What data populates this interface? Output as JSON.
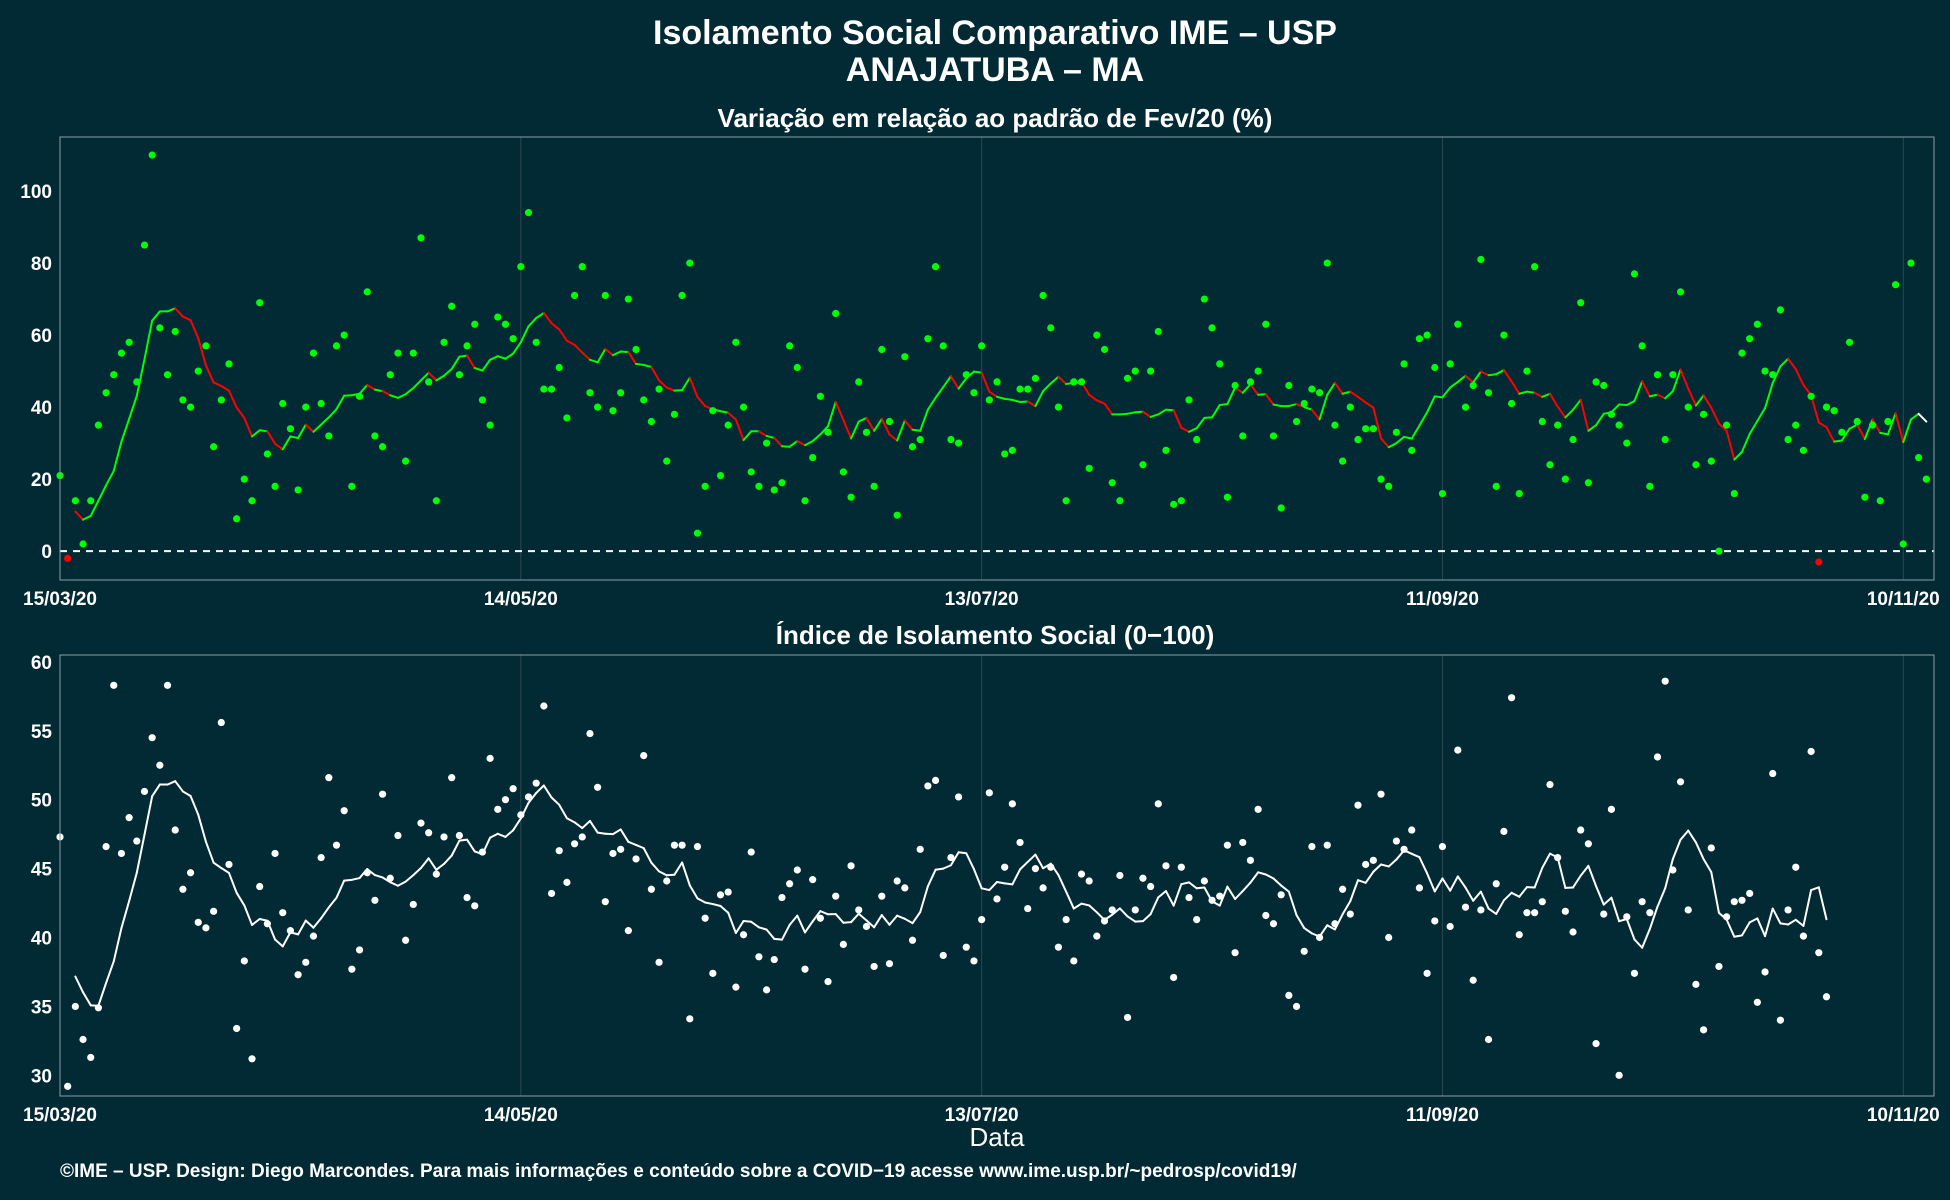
{
  "header": {
    "title_line1": "Isolamento Social Comparativo IME – USP",
    "title_line2": "ANAJATUBA – MA"
  },
  "footer": {
    "credit": "©IME – USP. Design: Diego Marcondes. Para mais informações e conteúdo sobre a COVID−19 acesse www.ime.usp.br/~pedrosp/covid19/"
  },
  "colors": {
    "background": "#022a35",
    "grid": "#2b4752",
    "green": "#00ff00",
    "red": "#ff0000",
    "white": "#ffffff"
  },
  "chart_data": [
    {
      "type": "scatter",
      "title": "Variação em relação ao padrão de Fev/20 (%)",
      "xlabel": "",
      "ylabel": "",
      "x_start": "15/03/20",
      "x_end": "14/11/20",
      "x_ticks": [
        "15/03/20",
        "14/05/20",
        "13/07/20",
        "11/09/20",
        "10/11/20"
      ],
      "x_tick_days": [
        0,
        60,
        120,
        180,
        240
      ],
      "ylim": [
        -8,
        115
      ],
      "y_ticks": [
        0,
        20,
        40,
        60,
        80,
        100
      ],
      "reference_line": 0,
      "grid": true,
      "point_color_rule": "green if >= 0, red if < 0",
      "smooth_color_rule": "green when the average is rising or holding, red when falling, white at the last point",
      "series": [
        {
          "values": [
            21,
            -2,
            14,
            2,
            14,
            35,
            44,
            49,
            55,
            58,
            47,
            85,
            110,
            62,
            49,
            61,
            42,
            40,
            50,
            57,
            29,
            42,
            52,
            9,
            20,
            14,
            69,
            27,
            18,
            41,
            34,
            17,
            40,
            55,
            41,
            32,
            57,
            60,
            18,
            43,
            72,
            32,
            29,
            49,
            55,
            25,
            55,
            87,
            47,
            14,
            58,
            68,
            49,
            57,
            63,
            42,
            35,
            65,
            63,
            59,
            79,
            94,
            58,
            45,
            45,
            51,
            37,
            71,
            79,
            44,
            40,
            71,
            39,
            44,
            70,
            56,
            42,
            36,
            45,
            25,
            38,
            71,
            80,
            5,
            18,
            39,
            21,
            35,
            58,
            40,
            22,
            18,
            30,
            17,
            19,
            57,
            51,
            14,
            26,
            43,
            33,
            66,
            22,
            15,
            47,
            33,
            18,
            56,
            36,
            10,
            54,
            29,
            31,
            59,
            79,
            57,
            31,
            30,
            49,
            44,
            57,
            42,
            47,
            27,
            28,
            45,
            45,
            48,
            71,
            62,
            40,
            14,
            47,
            47,
            23,
            60,
            56,
            19,
            14,
            48,
            50,
            24,
            50,
            61,
            28,
            13,
            14,
            42,
            31,
            70,
            62,
            52,
            15,
            46,
            32,
            47,
            50,
            63,
            32,
            12,
            46,
            36,
            41,
            45,
            44,
            80,
            35,
            25,
            40,
            31,
            34,
            34,
            20,
            18,
            33,
            52,
            28,
            59,
            60,
            51,
            16,
            52,
            63,
            40,
            46,
            81,
            44,
            18,
            60,
            41,
            16,
            50,
            79,
            36,
            24,
            35,
            20,
            31,
            69,
            19,
            47,
            46,
            38,
            35,
            30,
            77,
            57,
            18,
            49,
            31,
            49,
            72,
            40,
            24,
            38,
            25,
            0,
            35,
            16,
            55,
            59,
            63,
            50,
            49,
            67,
            31,
            35,
            28,
            43,
            -3,
            40,
            39,
            33,
            58,
            36,
            15,
            35,
            14,
            36,
            74,
            2,
            80,
            26,
            20
          ]
        }
      ]
    },
    {
      "type": "scatter",
      "title": "Índice de Isolamento Social (0−100)",
      "xlabel": "Data",
      "ylabel": "",
      "x_start": "15/03/20",
      "x_end": "14/11/20",
      "x_ticks": [
        "15/03/20",
        "14/05/20",
        "13/07/20",
        "11/09/20",
        "10/11/20"
      ],
      "x_tick_days": [
        0,
        60,
        120,
        180,
        240
      ],
      "ylim": [
        28.5,
        60.5
      ],
      "y_ticks": [
        30,
        35,
        40,
        45,
        50,
        55,
        60
      ],
      "grid": true,
      "series": [
        {
          "values": [
            47.3,
            29.2,
            35.0,
            32.6,
            31.3,
            34.9,
            46.6,
            58.3,
            46.1,
            48.7,
            47.0,
            50.6,
            54.5,
            52.5,
            58.3,
            47.8,
            43.5,
            44.7,
            41.1,
            40.7,
            41.9,
            55.6,
            45.3,
            33.4,
            38.3,
            31.2,
            43.7,
            41.0,
            46.1,
            41.8,
            40.5,
            37.3,
            38.2,
            40.1,
            45.8,
            51.6,
            46.7,
            49.2,
            37.7,
            39.1,
            44.7,
            42.7,
            50.4,
            44.3,
            47.4,
            39.8,
            42.4,
            48.3,
            47.6,
            44.6,
            47.3,
            51.6,
            47.4,
            42.9,
            42.3,
            46.2,
            53.0,
            49.3,
            50.0,
            50.8,
            48.9,
            50.2,
            51.2,
            56.8,
            43.2,
            46.3,
            44.0,
            46.8,
            47.3,
            54.8,
            50.9,
            42.6,
            46.1,
            46.4,
            40.5,
            45.7,
            53.2,
            43.5,
            38.2,
            44.1,
            46.7,
            46.7,
            34.1,
            46.6,
            41.4,
            37.4,
            43.1,
            43.3,
            36.4,
            40.2,
            46.2,
            38.6,
            36.2,
            38.4,
            42.9,
            43.9,
            44.9,
            37.7,
            44.2,
            41.4,
            36.8,
            43.0,
            39.5,
            45.2,
            42.0,
            40.8,
            37.9,
            43.0,
            38.1,
            44.1,
            43.6,
            39.8,
            46.4,
            51.0,
            51.4,
            38.7,
            45.8,
            50.2,
            39.3,
            38.3,
            41.3,
            50.5,
            42.8,
            45.1,
            49.7,
            46.9,
            42.1,
            45.0,
            43.6,
            45.1,
            39.3,
            41.3,
            38.3,
            44.6,
            44.1,
            40.1,
            41.2,
            42.0,
            44.5,
            34.2,
            42.0,
            44.3,
            43.7,
            49.7,
            45.2,
            37.1,
            45.1,
            42.9,
            41.3,
            44.1,
            42.7,
            43.0,
            46.7,
            38.9,
            46.9,
            45.6,
            49.3,
            41.6,
            41.0,
            43.1,
            35.8,
            35.0,
            39.0,
            46.6,
            40.0,
            46.7,
            41.0,
            43.5,
            41.7,
            49.6,
            45.3,
            45.6,
            50.4,
            40.0,
            47.0,
            46.4,
            47.8,
            43.6,
            37.4,
            41.2,
            46.6,
            40.8,
            53.6,
            42.2,
            36.9,
            42.0,
            32.6,
            43.9,
            47.7,
            57.4,
            40.2,
            41.8,
            41.8,
            42.6,
            51.1,
            45.8,
            41.9,
            40.4,
            47.8,
            46.8,
            32.3,
            41.7,
            49.3,
            30.0,
            41.5,
            37.4,
            42.6,
            41.8,
            53.1,
            58.6,
            44.9,
            51.3,
            42.0,
            36.6,
            33.3,
            46.5,
            37.9,
            41.5,
            42.6,
            42.7,
            43.2,
            35.3,
            37.5,
            51.9,
            34.0,
            42.0,
            45.1,
            40.1,
            53.5,
            38.9,
            35.7
          ]
        }
      ]
    }
  ]
}
